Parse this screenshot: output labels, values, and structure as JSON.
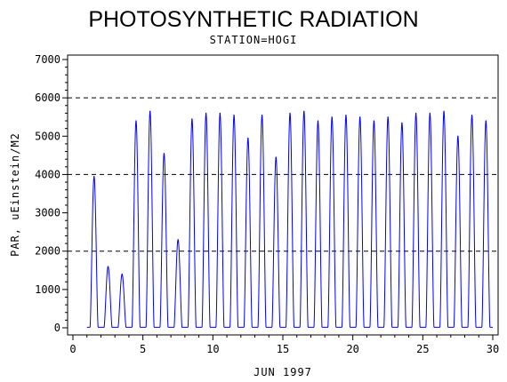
{
  "chart_data": {
    "type": "line",
    "title": "PHOTOSYNTHETIC RADIATION",
    "subtitle": "STATION=HOGI",
    "xlabel": "JUN 1997",
    "ylabel": "PAR, uEinstein/M2",
    "xlim": [
      0,
      30
    ],
    "ylim": [
      0,
      7000
    ],
    "x_ticks": [
      0,
      5,
      10,
      15,
      20,
      25,
      30
    ],
    "y_ticks": [
      0,
      1000,
      2000,
      3000,
      4000,
      5000,
      6000,
      7000
    ],
    "reference_lines": [
      2000,
      4000,
      6000
    ],
    "grid": false,
    "legend": "none",
    "line_color": "#0000ff",
    "daily_peaks": [
      {
        "day": 1,
        "peak": 3950
      },
      {
        "day": 2,
        "peak": 1600
      },
      {
        "day": 3,
        "peak": 1400
      },
      {
        "day": 4,
        "peak": 5400
      },
      {
        "day": 5,
        "peak": 5650
      },
      {
        "day": 6,
        "peak": 4550
      },
      {
        "day": 7,
        "peak": 2300
      },
      {
        "day": 8,
        "peak": 5450
      },
      {
        "day": 9,
        "peak": 5600
      },
      {
        "day": 10,
        "peak": 5600
      },
      {
        "day": 11,
        "peak": 5550
      },
      {
        "day": 12,
        "peak": 4950
      },
      {
        "day": 13,
        "peak": 5550
      },
      {
        "day": 14,
        "peak": 4450
      },
      {
        "day": 15,
        "peak": 5600
      },
      {
        "day": 16,
        "peak": 5650
      },
      {
        "day": 17,
        "peak": 5400
      },
      {
        "day": 18,
        "peak": 5500
      },
      {
        "day": 19,
        "peak": 5550
      },
      {
        "day": 20,
        "peak": 5500
      },
      {
        "day": 21,
        "peak": 5400
      },
      {
        "day": 22,
        "peak": 5500
      },
      {
        "day": 23,
        "peak": 5350
      },
      {
        "day": 24,
        "peak": 5600
      },
      {
        "day": 25,
        "peak": 5600
      },
      {
        "day": 26,
        "peak": 5650
      },
      {
        "day": 27,
        "peak": 5000
      },
      {
        "day": 28,
        "peak": 5550
      },
      {
        "day": 29,
        "peak": 5400
      }
    ]
  }
}
